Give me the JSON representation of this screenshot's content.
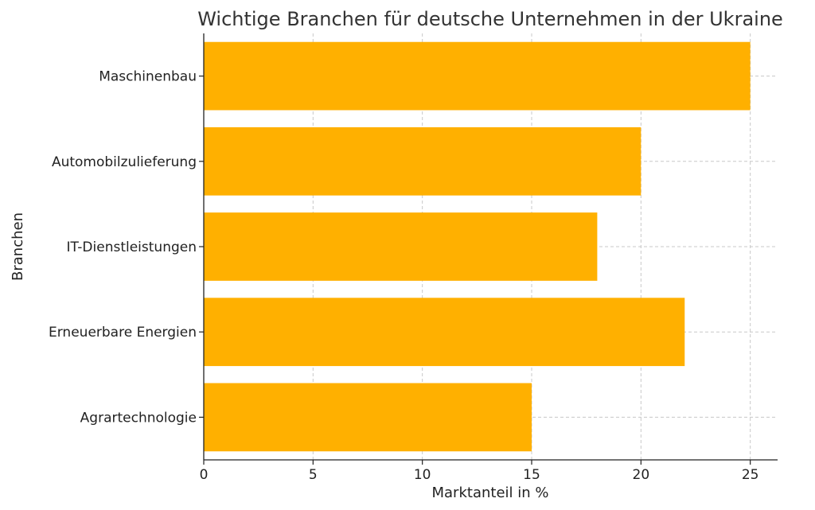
{
  "chart_data": {
    "type": "bar",
    "orientation": "horizontal",
    "title": "Wichtige Branchen für deutsche Unternehmen in der Ukraine",
    "xlabel": "Marktanteil in %",
    "ylabel": "Branchen",
    "categories": [
      "Maschinenbau",
      "Automobilzulieferung",
      "IT-Dienstleistungen",
      "Erneuerbare Energien",
      "Agrartechnologie"
    ],
    "values": [
      25,
      20,
      18,
      22,
      15
    ],
    "xlim": [
      0,
      26.25
    ],
    "xticks": [
      0,
      5,
      10,
      15,
      20,
      25
    ],
    "grid": true,
    "bar_color": "#FFB000"
  }
}
